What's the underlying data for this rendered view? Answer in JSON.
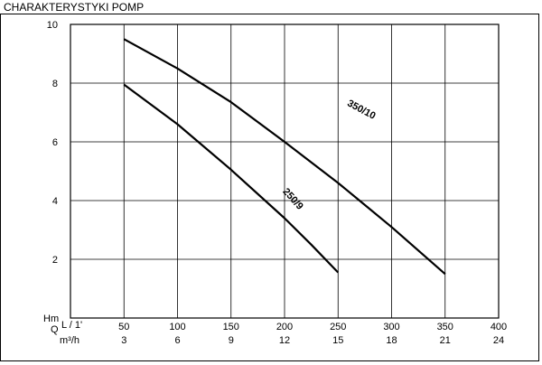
{
  "header": {
    "title": "CHARAKTERYSTYKI POMP"
  },
  "chart_data": {
    "type": "line",
    "title": "CHARAKTERYSTYKI POMP",
    "ylabel": "Hm",
    "xlabel": "Q",
    "x_unit_primary": "L / 1'",
    "x_unit_secondary": "m³/h",
    "xlim": [
      0,
      400
    ],
    "ylim": [
      0,
      10
    ],
    "x_ticks": [
      0,
      50,
      100,
      150,
      200,
      250,
      300,
      350,
      400
    ],
    "x_tick_labels_primary": [
      "",
      "50",
      "100",
      "150",
      "200",
      "250",
      "300",
      "350",
      "400"
    ],
    "x_tick_labels_secondary": [
      "",
      "3",
      "6",
      "9",
      "12",
      "15",
      "18",
      "21",
      "24"
    ],
    "y_ticks": [
      0,
      2,
      4,
      6,
      8,
      10
    ],
    "y_tick_labels": [
      "",
      "2",
      "4",
      "6",
      "8",
      "10"
    ],
    "grid": true,
    "series": [
      {
        "name": "350/10",
        "x": [
          50,
          100,
          150,
          200,
          250,
          270,
          300,
          350
        ],
        "y": [
          9.5,
          8.5,
          7.35,
          6.0,
          4.6,
          4.0,
          3.1,
          1.5
        ]
      },
      {
        "name": "250/9",
        "x": [
          50,
          100,
          150,
          200,
          225,
          250
        ],
        "y": [
          7.95,
          6.6,
          5.05,
          3.4,
          2.5,
          1.55
        ]
      }
    ]
  }
}
